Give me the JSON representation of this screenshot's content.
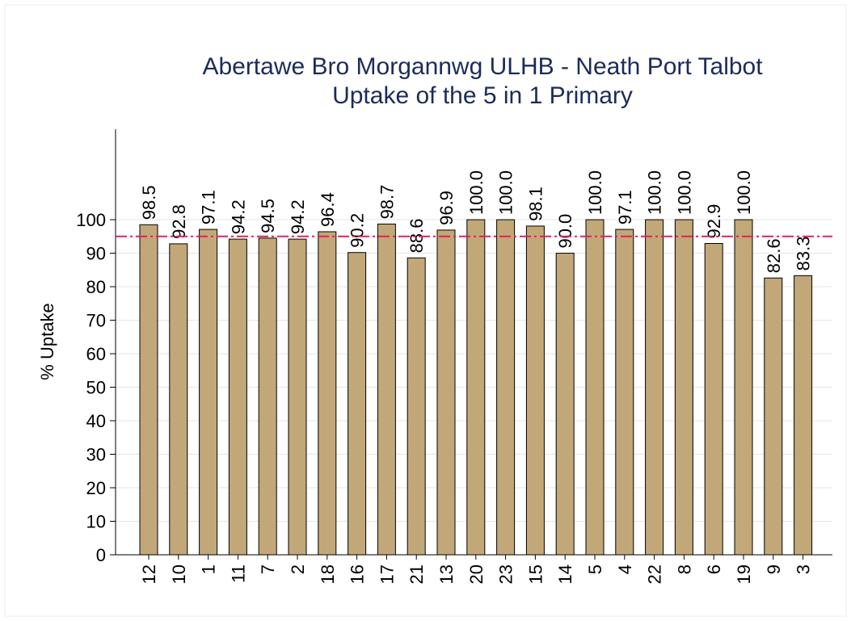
{
  "chart_data": {
    "type": "bar",
    "title": "Abertawe Bro Morgannwg ULHB - Neath Port Talbot",
    "subtitle": "Uptake of the 5 in 1 Primary",
    "y_label": "% Uptake",
    "categories": [
      "12",
      "10",
      "1",
      "11",
      "7",
      "2",
      "18",
      "16",
      "17",
      "21",
      "13",
      "20",
      "23",
      "15",
      "14",
      "5",
      "4",
      "22",
      "8",
      "6",
      "19",
      "9",
      "3"
    ],
    "values": [
      98.5,
      92.8,
      97.1,
      94.2,
      94.5,
      94.2,
      96.4,
      90.2,
      98.7,
      88.6,
      96.9,
      100.0,
      100.0,
      98.1,
      90.0,
      100.0,
      97.1,
      100.0,
      100.0,
      92.9,
      100.0,
      82.6,
      83.3
    ],
    "value_labels": [
      "98.5",
      "92.8",
      "97.1",
      "94.2",
      "94.5",
      "94.2",
      "96.4",
      "90.2",
      "98.7",
      "88.6",
      "96.9",
      "100.0",
      "100.0",
      "98.1",
      "90.0",
      "100.0",
      "97.1",
      "100.0",
      "100.0",
      "92.9",
      "100.0",
      "82.6",
      "83.3"
    ],
    "color": "#c2a878",
    "target": 95,
    "target_color": "#e0205a",
    "ylim": [
      0,
      127
    ],
    "yticks": [
      0,
      10,
      20,
      30,
      40,
      50,
      60,
      70,
      80,
      90,
      100
    ],
    "grid": true
  }
}
